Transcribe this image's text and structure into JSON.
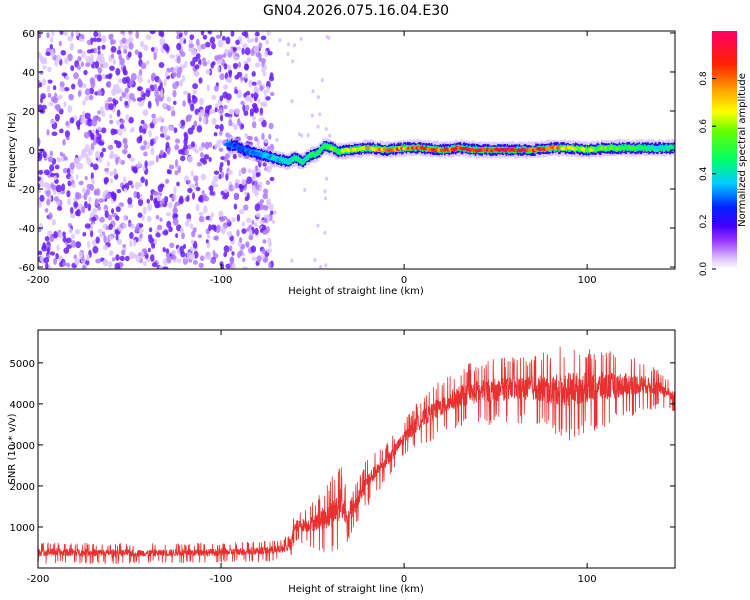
{
  "title": "GN04.2026.075.16.04.E30",
  "chart_data": [
    {
      "type": "heatmap",
      "description_title": "spectrogram",
      "xlabel": "Height of straight line (km)",
      "ylabel": "Frequency (Hz)",
      "xlim": [
        -200,
        148
      ],
      "ylim": [
        -61,
        61
      ],
      "xticks": [
        {
          "v": -200,
          "label": "-200"
        },
        {
          "v": -100,
          "label": "-100"
        },
        {
          "v": 0,
          "label": "0"
        },
        {
          "v": 100,
          "label": "100"
        }
      ],
      "yticks": [
        {
          "v": 60,
          "label": "60"
        },
        {
          "v": 40,
          "label": "40"
        },
        {
          "v": 20,
          "label": "20"
        },
        {
          "v": 0,
          "label": "0"
        },
        {
          "v": -20,
          "label": "-20"
        },
        {
          "v": -40,
          "label": "-40"
        },
        {
          "v": -60,
          "label": "-60"
        }
      ],
      "noise_region_x": [
        -200,
        -72
      ],
      "signal_track": {
        "x": [
          -97,
          -92,
          -88,
          -84,
          -80,
          -76,
          -72,
          -68,
          -64,
          -60,
          -56,
          -52,
          -48,
          -44,
          -40,
          -36,
          -30,
          -20,
          -10,
          0,
          10,
          20,
          30,
          40,
          50,
          60,
          70,
          80,
          90,
          100,
          110,
          120,
          130,
          140,
          148
        ],
        "freq": [
          3,
          2,
          0,
          -1,
          -2,
          -3,
          -4,
          -5,
          -6,
          -4,
          -6,
          -3,
          -2,
          2,
          1,
          -1,
          0,
          1,
          0,
          1,
          1,
          0,
          1,
          0,
          0,
          0,
          0,
          1,
          1,
          0,
          1,
          1,
          1,
          1,
          1
        ],
        "amplitude": [
          0.35,
          0.3,
          0.3,
          0.32,
          0.35,
          0.35,
          0.4,
          0.4,
          0.42,
          0.45,
          0.45,
          0.5,
          0.5,
          0.55,
          0.6,
          0.6,
          0.7,
          0.75,
          0.8,
          0.85,
          0.9,
          0.9,
          0.95,
          0.95,
          1.0,
          1.0,
          0.95,
          0.85,
          0.75,
          0.65,
          0.6,
          0.55,
          0.5,
          0.45,
          0.45
        ]
      },
      "colorbar": {
        "label": "Normalized spectral amplitude",
        "range": [
          0,
          1
        ],
        "ticks": [
          {
            "v": 0.0,
            "label": "0.0"
          },
          {
            "v": 0.2,
            "label": "0.2"
          },
          {
            "v": 0.4,
            "label": "0.4"
          },
          {
            "v": 0.6,
            "label": "0.6"
          },
          {
            "v": 0.8,
            "label": "0.8"
          }
        ],
        "colors": [
          "#ffffff",
          "#cc99ff",
          "#6600ff",
          "#0000ff",
          "#00ccff",
          "#00ff66",
          "#ccff00",
          "#ff9900",
          "#ff0000",
          "#ff0066"
        ]
      }
    },
    {
      "type": "line",
      "xlabel": "Height of straight line (km)",
      "ylabel": "SNR (10 * v/v)",
      "xlim": [
        -200,
        148
      ],
      "ylim": [
        0,
        5800
      ],
      "color": "#e83030",
      "xticks": [
        {
          "v": -200,
          "label": "-200"
        },
        {
          "v": -100,
          "label": "-100"
        },
        {
          "v": 0,
          "label": "0"
        },
        {
          "v": 100,
          "label": "100"
        }
      ],
      "yticks": [
        {
          "v": 5000,
          "label": "5000"
        },
        {
          "v": 4000,
          "label": "4000"
        },
        {
          "v": 3000,
          "label": "3000"
        },
        {
          "v": 2000,
          "label": "2000"
        },
        {
          "v": 1000,
          "label": "1000"
        }
      ],
      "envelope": {
        "x": [
          -200,
          -150,
          -100,
          -70,
          -62,
          -60,
          -50,
          -40,
          -35,
          -30,
          -20,
          -10,
          0,
          10,
          20,
          30,
          40,
          50,
          60,
          70,
          80,
          90,
          100,
          110,
          120,
          130,
          140,
          148
        ],
        "low": [
          100,
          100,
          120,
          150,
          200,
          600,
          500,
          300,
          400,
          700,
          1500,
          2100,
          2700,
          3000,
          3200,
          3400,
          3450,
          3500,
          3500,
          3500,
          3300,
          3100,
          3300,
          3400,
          3600,
          3800,
          3900,
          3800
        ],
        "high": [
          650,
          600,
          620,
          700,
          800,
          1400,
          1600,
          2200,
          2600,
          1700,
          2700,
          3000,
          3600,
          4200,
          4600,
          4900,
          5050,
          5100,
          5150,
          5200,
          5300,
          5500,
          5400,
          5350,
          5250,
          5100,
          4800,
          4500
        ]
      }
    }
  ]
}
